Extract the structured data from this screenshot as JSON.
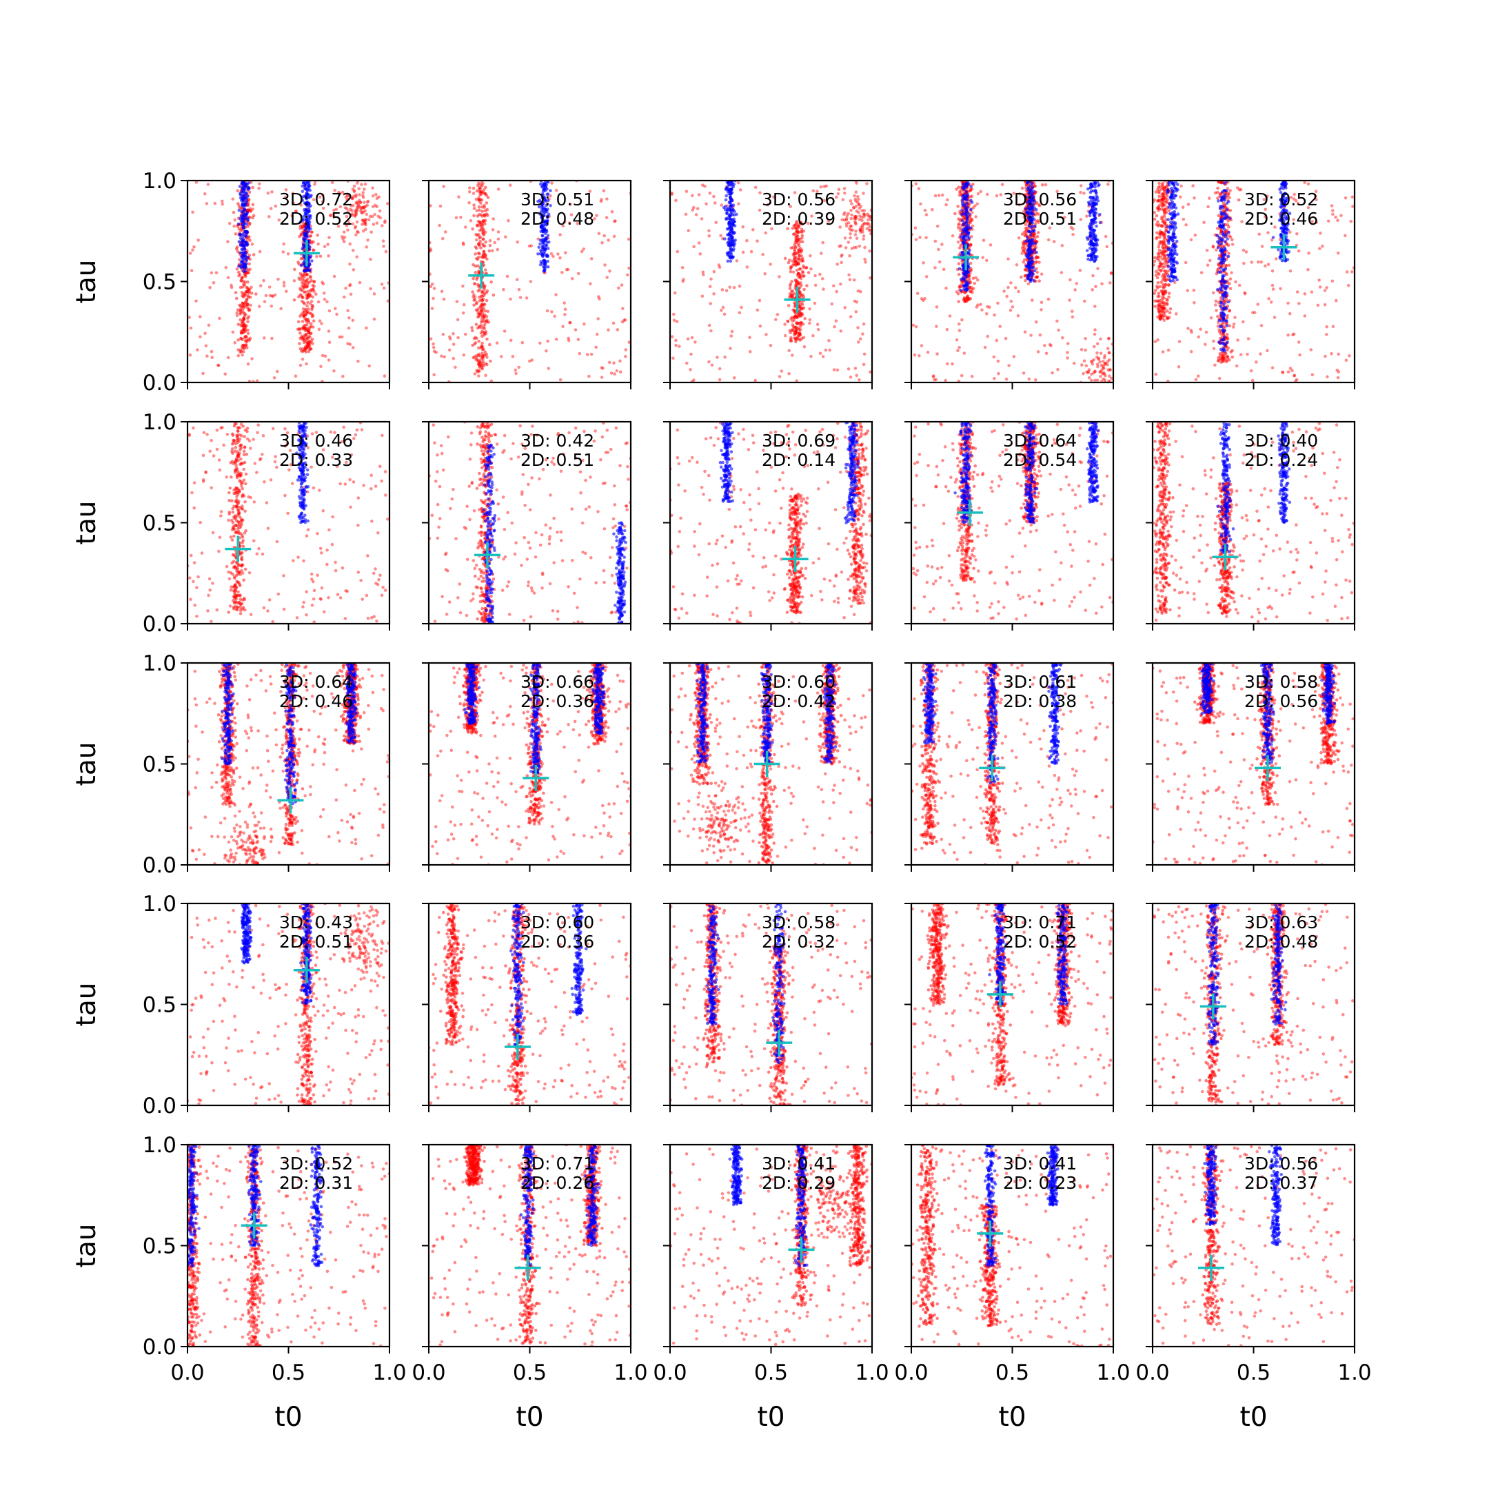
{
  "figure": {
    "xlabel": "t0",
    "ylabel": "tau",
    "rows": 5,
    "cols": 5,
    "xlim": [
      0.0,
      1.0
    ],
    "ylim": [
      0.0,
      1.0
    ],
    "xticks": [
      "0.0",
      "0.5",
      "1.0"
    ],
    "yticks": [
      "0.0",
      "0.5",
      "1.0"
    ],
    "colors": {
      "red_points": "#ff0000",
      "blue_points": "#0000ff",
      "marker": "#17bfbf"
    }
  },
  "chart_data": [
    {
      "type": "scatter",
      "marker": {
        "t0": 0.59,
        "tau": 0.64
      },
      "labels": [
        "3D: 0.72",
        "2D: 0.52"
      ],
      "blue_columns": [
        {
          "t0": 0.59,
          "tau_range": [
            0.55,
            1.0
          ]
        },
        {
          "t0": 0.28,
          "tau_range": [
            0.55,
            1.0
          ]
        }
      ],
      "red_columns": [
        {
          "t0": 0.59,
          "tau_range": [
            0.15,
            0.8
          ]
        },
        {
          "t0": 0.28,
          "tau_range": [
            0.15,
            1.0
          ]
        }
      ],
      "red_blobs": [
        {
          "t0": 0.85,
          "tau": 0.85
        }
      ]
    },
    {
      "type": "scatter",
      "marker": {
        "t0": 0.26,
        "tau": 0.53
      },
      "labels": [
        "3D: 0.51",
        "2D: 0.48"
      ],
      "blue_columns": [
        {
          "t0": 0.57,
          "tau_range": [
            0.55,
            1.0
          ]
        }
      ],
      "red_columns": [
        {
          "t0": 0.26,
          "tau_range": [
            0.05,
            1.0
          ]
        }
      ],
      "red_blobs": []
    },
    {
      "type": "scatter",
      "marker": {
        "t0": 0.63,
        "tau": 0.41
      },
      "labels": [
        "3D: 0.56",
        "2D: 0.39"
      ],
      "blue_columns": [
        {
          "t0": 0.3,
          "tau_range": [
            0.6,
            1.0
          ]
        }
      ],
      "red_columns": [
        {
          "t0": 0.63,
          "tau_range": [
            0.2,
            0.8
          ]
        }
      ],
      "red_blobs": [
        {
          "t0": 0.95,
          "tau": 0.8
        }
      ]
    },
    {
      "type": "scatter",
      "marker": {
        "t0": 0.27,
        "tau": 0.62
      },
      "labels": [
        "3D: 0.56",
        "2D: 0.51"
      ],
      "blue_columns": [
        {
          "t0": 0.27,
          "tau_range": [
            0.45,
            1.0
          ]
        },
        {
          "t0": 0.59,
          "tau_range": [
            0.5,
            1.0
          ]
        },
        {
          "t0": 0.9,
          "tau_range": [
            0.6,
            1.0
          ]
        }
      ],
      "red_columns": [
        {
          "t0": 0.27,
          "tau_range": [
            0.4,
            1.0
          ]
        },
        {
          "t0": 0.59,
          "tau_range": [
            0.5,
            1.0
          ]
        }
      ],
      "red_blobs": [
        {
          "t0": 0.95,
          "tau": 0.05
        }
      ]
    },
    {
      "type": "scatter",
      "marker": {
        "t0": 0.65,
        "tau": 0.67
      },
      "labels": [
        "3D: 0.52",
        "2D: 0.46"
      ],
      "blue_columns": [
        {
          "t0": 0.35,
          "tau_range": [
            0.15,
            1.0
          ]
        },
        {
          "t0": 0.65,
          "tau_range": [
            0.6,
            1.0
          ]
        },
        {
          "t0": 0.1,
          "tau_range": [
            0.5,
            1.0
          ]
        }
      ],
      "red_columns": [
        {
          "t0": 0.35,
          "tau_range": [
            0.1,
            1.0
          ]
        },
        {
          "t0": 0.05,
          "tau_range": [
            0.3,
            1.0
          ]
        }
      ],
      "red_blobs": []
    },
    {
      "type": "scatter",
      "marker": {
        "t0": 0.25,
        "tau": 0.37
      },
      "labels": [
        "3D: 0.46",
        "2D: 0.33"
      ],
      "blue_columns": [
        {
          "t0": 0.57,
          "tau_range": [
            0.5,
            1.0
          ]
        }
      ],
      "red_columns": [
        {
          "t0": 0.25,
          "tau_range": [
            0.05,
            1.0
          ]
        }
      ],
      "red_blobs": []
    },
    {
      "type": "scatter",
      "marker": {
        "t0": 0.29,
        "tau": 0.34
      },
      "labels": [
        "3D: 0.42",
        "2D: 0.51"
      ],
      "blue_columns": [
        {
          "t0": 0.3,
          "tau_range": [
            0.0,
            0.9
          ]
        },
        {
          "t0": 0.95,
          "tau_range": [
            0.0,
            0.5
          ]
        }
      ],
      "red_columns": [
        {
          "t0": 0.28,
          "tau_range": [
            0.0,
            1.0
          ]
        }
      ],
      "red_blobs": []
    },
    {
      "type": "scatter",
      "marker": {
        "t0": 0.62,
        "tau": 0.32
      },
      "labels": [
        "3D: 0.69",
        "2D: 0.14"
      ],
      "blue_columns": [
        {
          "t0": 0.28,
          "tau_range": [
            0.6,
            1.0
          ]
        },
        {
          "t0": 0.9,
          "tau_range": [
            0.5,
            1.0
          ]
        }
      ],
      "red_columns": [
        {
          "t0": 0.62,
          "tau_range": [
            0.05,
            0.65
          ]
        },
        {
          "t0": 0.93,
          "tau_range": [
            0.1,
            1.0
          ]
        }
      ],
      "red_blobs": []
    },
    {
      "type": "scatter",
      "marker": {
        "t0": 0.29,
        "tau": 0.55
      },
      "labels": [
        "3D: 0.64",
        "2D: 0.54"
      ],
      "blue_columns": [
        {
          "t0": 0.27,
          "tau_range": [
            0.5,
            1.0
          ]
        },
        {
          "t0": 0.59,
          "tau_range": [
            0.5,
            1.0
          ]
        },
        {
          "t0": 0.9,
          "tau_range": [
            0.6,
            1.0
          ]
        }
      ],
      "red_columns": [
        {
          "t0": 0.27,
          "tau_range": [
            0.2,
            1.0
          ]
        },
        {
          "t0": 0.59,
          "tau_range": [
            0.5,
            1.0
          ]
        }
      ],
      "red_blobs": []
    },
    {
      "type": "scatter",
      "marker": {
        "t0": 0.36,
        "tau": 0.33
      },
      "labels": [
        "3D: 0.40",
        "2D: 0.24"
      ],
      "blue_columns": [
        {
          "t0": 0.36,
          "tau_range": [
            0.35,
            1.0
          ]
        },
        {
          "t0": 0.65,
          "tau_range": [
            0.5,
            1.0
          ]
        }
      ],
      "red_columns": [
        {
          "t0": 0.36,
          "tau_range": [
            0.05,
            0.7
          ]
        },
        {
          "t0": 0.05,
          "tau_range": [
            0.05,
            1.0
          ]
        }
      ],
      "red_blobs": []
    },
    {
      "type": "scatter",
      "marker": {
        "t0": 0.51,
        "tau": 0.32
      },
      "labels": [
        "3D: 0.64",
        "2D: 0.46"
      ],
      "blue_columns": [
        {
          "t0": 0.2,
          "tau_range": [
            0.5,
            1.0
          ]
        },
        {
          "t0": 0.51,
          "tau_range": [
            0.3,
            1.0
          ]
        },
        {
          "t0": 0.81,
          "tau_range": [
            0.6,
            1.0
          ]
        }
      ],
      "red_columns": [
        {
          "t0": 0.2,
          "tau_range": [
            0.3,
            1.0
          ]
        },
        {
          "t0": 0.51,
          "tau_range": [
            0.1,
            1.0
          ]
        },
        {
          "t0": 0.81,
          "tau_range": [
            0.6,
            1.0
          ]
        }
      ],
      "red_blobs": [
        {
          "t0": 0.3,
          "tau": 0.08
        }
      ]
    },
    {
      "type": "scatter",
      "marker": {
        "t0": 0.53,
        "tau": 0.43
      },
      "labels": [
        "3D: 0.66",
        "2D: 0.36"
      ],
      "blue_columns": [
        {
          "t0": 0.21,
          "tau_range": [
            0.7,
            1.0
          ]
        },
        {
          "t0": 0.53,
          "tau_range": [
            0.45,
            1.0
          ]
        },
        {
          "t0": 0.84,
          "tau_range": [
            0.65,
            1.0
          ]
        }
      ],
      "red_columns": [
        {
          "t0": 0.21,
          "tau_range": [
            0.65,
            1.0
          ]
        },
        {
          "t0": 0.53,
          "tau_range": [
            0.2,
            1.0
          ]
        },
        {
          "t0": 0.84,
          "tau_range": [
            0.6,
            1.0
          ]
        }
      ],
      "red_blobs": []
    },
    {
      "type": "scatter",
      "marker": {
        "t0": 0.48,
        "tau": 0.5
      },
      "labels": [
        "3D: 0.60",
        "2D: 0.42"
      ],
      "blue_columns": [
        {
          "t0": 0.16,
          "tau_range": [
            0.5,
            1.0
          ]
        },
        {
          "t0": 0.48,
          "tau_range": [
            0.5,
            1.0
          ]
        },
        {
          "t0": 0.79,
          "tau_range": [
            0.5,
            1.0
          ]
        }
      ],
      "red_columns": [
        {
          "t0": 0.16,
          "tau_range": [
            0.4,
            1.0
          ]
        },
        {
          "t0": 0.48,
          "tau_range": [
            0.0,
            1.0
          ]
        },
        {
          "t0": 0.79,
          "tau_range": [
            0.5,
            1.0
          ]
        }
      ],
      "red_blobs": [
        {
          "t0": 0.25,
          "tau": 0.2
        }
      ]
    },
    {
      "type": "scatter",
      "marker": {
        "t0": 0.4,
        "tau": 0.48
      },
      "labels": [
        "3D: 0.61",
        "2D: 0.38"
      ],
      "blue_columns": [
        {
          "t0": 0.09,
          "tau_range": [
            0.6,
            1.0
          ]
        },
        {
          "t0": 0.4,
          "tau_range": [
            0.4,
            1.0
          ]
        },
        {
          "t0": 0.71,
          "tau_range": [
            0.5,
            1.0
          ]
        }
      ],
      "red_columns": [
        {
          "t0": 0.09,
          "tau_range": [
            0.1,
            1.0
          ]
        },
        {
          "t0": 0.4,
          "tau_range": [
            0.1,
            1.0
          ]
        }
      ],
      "red_blobs": []
    },
    {
      "type": "scatter",
      "marker": {
        "t0": 0.57,
        "tau": 0.48
      },
      "labels": [
        "3D: 0.58",
        "2D: 0.56"
      ],
      "blue_columns": [
        {
          "t0": 0.27,
          "tau_range": [
            0.75,
            1.0
          ]
        },
        {
          "t0": 0.57,
          "tau_range": [
            0.5,
            1.0
          ]
        },
        {
          "t0": 0.87,
          "tau_range": [
            0.7,
            1.0
          ]
        }
      ],
      "red_columns": [
        {
          "t0": 0.27,
          "tau_range": [
            0.7,
            1.0
          ]
        },
        {
          "t0": 0.57,
          "tau_range": [
            0.3,
            1.0
          ]
        },
        {
          "t0": 0.87,
          "tau_range": [
            0.5,
            1.0
          ]
        }
      ],
      "red_blobs": []
    },
    {
      "type": "scatter",
      "marker": {
        "t0": 0.59,
        "tau": 0.67
      },
      "labels": [
        "3D: 0.43",
        "2D: 0.51"
      ],
      "blue_columns": [
        {
          "t0": 0.29,
          "tau_range": [
            0.7,
            1.0
          ]
        },
        {
          "t0": 0.59,
          "tau_range": [
            0.5,
            1.0
          ]
        }
      ],
      "red_columns": [
        {
          "t0": 0.59,
          "tau_range": [
            0.0,
            1.0
          ]
        }
      ],
      "red_blobs": [
        {
          "t0": 0.88,
          "tau": 0.8
        }
      ]
    },
    {
      "type": "scatter",
      "marker": {
        "t0": 0.44,
        "tau": 0.29
      },
      "labels": [
        "3D: 0.60",
        "2D: 0.36"
      ],
      "blue_columns": [
        {
          "t0": 0.44,
          "tau_range": [
            0.3,
            1.0
          ]
        },
        {
          "t0": 0.74,
          "tau_range": [
            0.45,
            1.0
          ]
        }
      ],
      "red_columns": [
        {
          "t0": 0.44,
          "tau_range": [
            0.0,
            1.0
          ]
        },
        {
          "t0": 0.12,
          "tau_range": [
            0.3,
            1.0
          ]
        }
      ],
      "red_blobs": []
    },
    {
      "type": "scatter",
      "marker": {
        "t0": 0.54,
        "tau": 0.31
      },
      "labels": [
        "3D: 0.58",
        "2D: 0.32"
      ],
      "blue_columns": [
        {
          "t0": 0.21,
          "tau_range": [
            0.4,
            1.0
          ]
        },
        {
          "t0": 0.54,
          "tau_range": [
            0.2,
            1.0
          ]
        }
      ],
      "red_columns": [
        {
          "t0": 0.21,
          "tau_range": [
            0.2,
            1.0
          ]
        },
        {
          "t0": 0.54,
          "tau_range": [
            0.0,
            0.8
          ]
        }
      ],
      "red_blobs": []
    },
    {
      "type": "scatter",
      "marker": {
        "t0": 0.44,
        "tau": 0.55
      },
      "labels": [
        "3D: 0.71",
        "2D: 0.52"
      ],
      "blue_columns": [
        {
          "t0": 0.44,
          "tau_range": [
            0.5,
            1.0
          ]
        },
        {
          "t0": 0.75,
          "tau_range": [
            0.5,
            1.0
          ]
        }
      ],
      "red_columns": [
        {
          "t0": 0.44,
          "tau_range": [
            0.1,
            1.0
          ]
        },
        {
          "t0": 0.75,
          "tau_range": [
            0.4,
            1.0
          ]
        },
        {
          "t0": 0.13,
          "tau_range": [
            0.5,
            1.0
          ]
        }
      ],
      "red_blobs": []
    },
    {
      "type": "scatter",
      "marker": {
        "t0": 0.3,
        "tau": 0.49
      },
      "labels": [
        "3D: 0.63",
        "2D: 0.48"
      ],
      "blue_columns": [
        {
          "t0": 0.3,
          "tau_range": [
            0.3,
            1.0
          ]
        },
        {
          "t0": 0.62,
          "tau_range": [
            0.4,
            1.0
          ]
        }
      ],
      "red_columns": [
        {
          "t0": 0.3,
          "tau_range": [
            0.0,
            1.0
          ]
        },
        {
          "t0": 0.62,
          "tau_range": [
            0.3,
            1.0
          ]
        }
      ],
      "red_blobs": []
    },
    {
      "type": "scatter",
      "marker": {
        "t0": 0.33,
        "tau": 0.6
      },
      "labels": [
        "3D: 0.52",
        "2D: 0.31"
      ],
      "blue_columns": [
        {
          "t0": 0.02,
          "tau_range": [
            0.4,
            1.0
          ]
        },
        {
          "t0": 0.33,
          "tau_range": [
            0.5,
            1.0
          ]
        },
        {
          "t0": 0.64,
          "tau_range": [
            0.4,
            1.0
          ]
        }
      ],
      "red_columns": [
        {
          "t0": 0.02,
          "tau_range": [
            0.0,
            1.0
          ]
        },
        {
          "t0": 0.33,
          "tau_range": [
            0.0,
            1.0
          ]
        }
      ],
      "red_blobs": []
    },
    {
      "type": "scatter",
      "marker": {
        "t0": 0.49,
        "tau": 0.39
      },
      "labels": [
        "3D: 0.71",
        "2D: 0.26"
      ],
      "blue_columns": [
        {
          "t0": 0.49,
          "tau_range": [
            0.4,
            1.0
          ]
        },
        {
          "t0": 0.81,
          "tau_range": [
            0.5,
            1.0
          ]
        }
      ],
      "red_columns": [
        {
          "t0": 0.49,
          "tau_range": [
            0.0,
            1.0
          ]
        },
        {
          "t0": 0.81,
          "tau_range": [
            0.5,
            1.0
          ]
        },
        {
          "t0": 0.22,
          "tau_range": [
            0.8,
            1.0
          ]
        }
      ],
      "red_blobs": []
    },
    {
      "type": "scatter",
      "marker": {
        "t0": 0.65,
        "tau": 0.48
      },
      "labels": [
        "3D: 0.41",
        "2D: 0.29"
      ],
      "blue_columns": [
        {
          "t0": 0.33,
          "tau_range": [
            0.7,
            1.0
          ]
        },
        {
          "t0": 0.65,
          "tau_range": [
            0.4,
            1.0
          ]
        }
      ],
      "red_columns": [
        {
          "t0": 0.65,
          "tau_range": [
            0.2,
            1.0
          ]
        },
        {
          "t0": 0.93,
          "tau_range": [
            0.4,
            1.0
          ]
        }
      ],
      "red_blobs": [
        {
          "t0": 0.8,
          "tau": 0.7
        }
      ]
    },
    {
      "type": "scatter",
      "marker": {
        "t0": 0.39,
        "tau": 0.56
      },
      "labels": [
        "3D: 0.41",
        "2D: 0.23"
      ],
      "blue_columns": [
        {
          "t0": 0.39,
          "tau_range": [
            0.4,
            1.0
          ]
        },
        {
          "t0": 0.7,
          "tau_range": [
            0.7,
            1.0
          ]
        }
      ],
      "red_columns": [
        {
          "t0": 0.08,
          "tau_range": [
            0.1,
            1.0
          ]
        },
        {
          "t0": 0.39,
          "tau_range": [
            0.1,
            0.7
          ]
        }
      ],
      "red_blobs": []
    },
    {
      "type": "scatter",
      "marker": {
        "t0": 0.29,
        "tau": 0.39
      },
      "labels": [
        "3D: 0.56",
        "2D: 0.37"
      ],
      "blue_columns": [
        {
          "t0": 0.29,
          "tau_range": [
            0.6,
            1.0
          ]
        },
        {
          "t0": 0.61,
          "tau_range": [
            0.5,
            1.0
          ]
        }
      ],
      "red_columns": [
        {
          "t0": 0.29,
          "tau_range": [
            0.1,
            1.0
          ]
        }
      ],
      "red_blobs": []
    }
  ]
}
